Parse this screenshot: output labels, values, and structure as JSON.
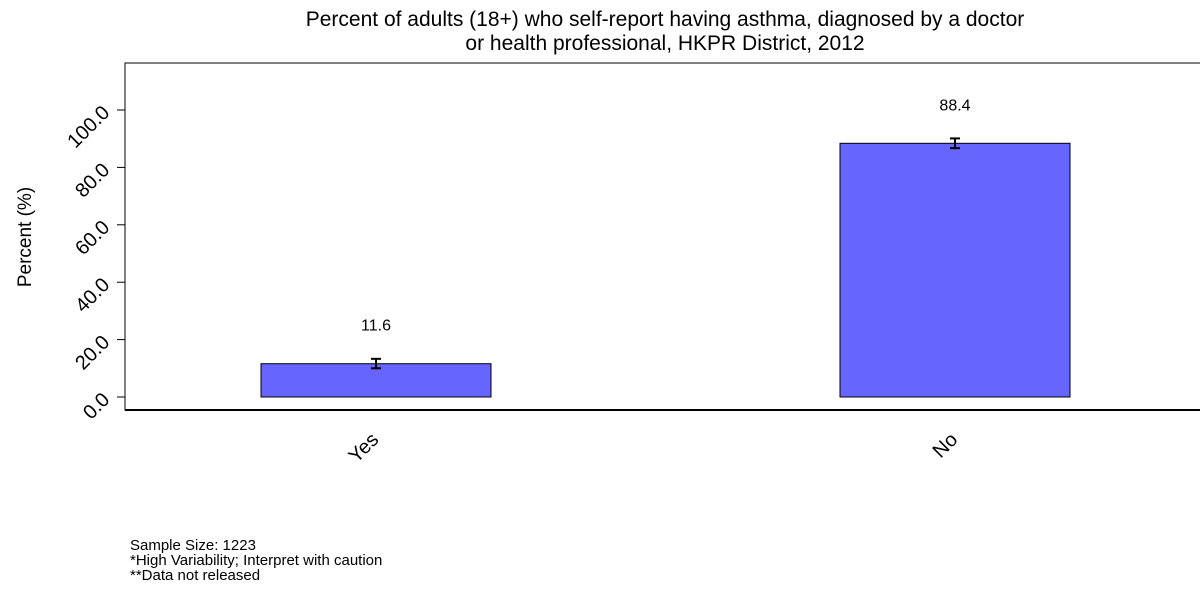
{
  "chart_data": {
    "type": "bar",
    "title_line1": "Percent of adults (18+) who self-report having asthma, diagnosed by a doctor",
    "title_line2": "or health professional, HKPR District, 2012",
    "xlabel": "",
    "ylabel": "Percent (%)",
    "categories": [
      "Yes",
      "No"
    ],
    "values": [
      11.6,
      88.4
    ],
    "value_labels": [
      "11.6",
      "88.4"
    ],
    "error_bars": [
      {
        "low": 10.0,
        "high": 13.3
      },
      {
        "low": 86.7,
        "high": 90.1
      }
    ],
    "ylim": [
      0,
      100
    ],
    "yticks": [
      "0.0",
      "20.0",
      "40.0",
      "60.0",
      "80.0",
      "100.0"
    ],
    "bar_color": "#6666ff",
    "grid": false,
    "legend": "none"
  },
  "footnotes": {
    "sample_size": "Sample Size: 1223",
    "high_variability": "*High Variability; Interpret with caution",
    "not_released": "**Data not released"
  }
}
